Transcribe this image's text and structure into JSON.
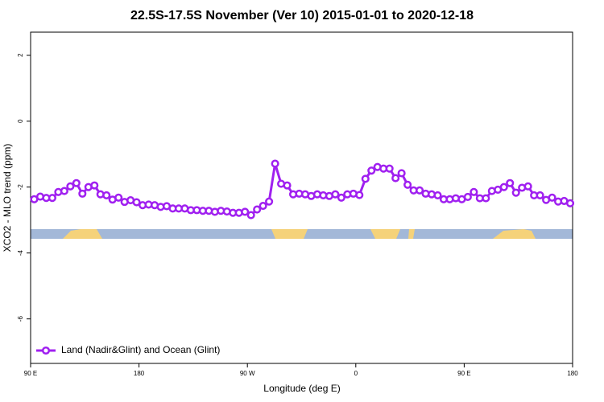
{
  "chart_data": {
    "type": "line",
    "title": "22.5S-17.5S November (Ver 10)   2015-01-01 to 2020-12-18",
    "xlabel": "Longitude (deg E)",
    "ylabel": "XCO2 - MLO trend (ppm)",
    "xlim": [
      90,
      540
    ],
    "ylim": [
      -7.35,
      2.7
    ],
    "xticks": [
      {
        "value": 90,
        "label": "90 E"
      },
      180,
      {
        "value": 270,
        "label": "90 W"
      },
      {
        "value": 360,
        "label": "0"
      },
      {
        "value": 450,
        "label": "90 E"
      },
      {
        "value": 540,
        "label": "180"
      }
    ],
    "yticks": [
      2,
      0,
      -2,
      -4,
      -6
    ],
    "legend": "bottom-left",
    "x": [
      93,
      98,
      103,
      108,
      113,
      118,
      123,
      128,
      133,
      138,
      143,
      148,
      153,
      158,
      163,
      168,
      173,
      178,
      183,
      188,
      193,
      198,
      203,
      208,
      213,
      218,
      223,
      228,
      233,
      238,
      243,
      248,
      253,
      258,
      263,
      268,
      273,
      278,
      283,
      288,
      293,
      298,
      303,
      308,
      313,
      318,
      323,
      328,
      333,
      338,
      343,
      348,
      353,
      358,
      363,
      368,
      373,
      378,
      383,
      388,
      393,
      398,
      403,
      408,
      413,
      418,
      423,
      428,
      433,
      438,
      443,
      448,
      453,
      458,
      463,
      468,
      473,
      478,
      483,
      488,
      493,
      498,
      503,
      508,
      513,
      518,
      523,
      528,
      533,
      538
    ],
    "series": [
      {
        "name": "Land (Nadir&Glint) and Ocean (Glint)",
        "color": "#a020f0",
        "values": [
          -2.37,
          -2.29,
          -2.33,
          -2.33,
          -2.15,
          -2.12,
          -1.98,
          -1.88,
          -2.2,
          -2.0,
          -1.95,
          -2.22,
          -2.25,
          -2.38,
          -2.32,
          -2.45,
          -2.4,
          -2.46,
          -2.55,
          -2.53,
          -2.55,
          -2.6,
          -2.58,
          -2.65,
          -2.65,
          -2.65,
          -2.7,
          -2.7,
          -2.72,
          -2.72,
          -2.75,
          -2.72,
          -2.74,
          -2.78,
          -2.78,
          -2.75,
          -2.85,
          -2.68,
          -2.57,
          -2.44,
          -1.29,
          -1.9,
          -1.95,
          -2.22,
          -2.2,
          -2.22,
          -2.27,
          -2.22,
          -2.25,
          -2.27,
          -2.22,
          -2.32,
          -2.22,
          -2.2,
          -2.24,
          -1.75,
          -1.5,
          -1.39,
          -1.44,
          -1.44,
          -1.73,
          -1.58,
          -1.93,
          -2.1,
          -2.1,
          -2.2,
          -2.22,
          -2.25,
          -2.37,
          -2.37,
          -2.34,
          -2.37,
          -2.3,
          -2.15,
          -2.34,
          -2.34,
          -2.12,
          -2.08,
          -2.0,
          -1.88,
          -2.17,
          -2.02,
          -1.98,
          -2.25,
          -2.25,
          -2.39,
          -2.32,
          -2.44,
          -2.42,
          -2.49
        ]
      }
    ]
  }
}
